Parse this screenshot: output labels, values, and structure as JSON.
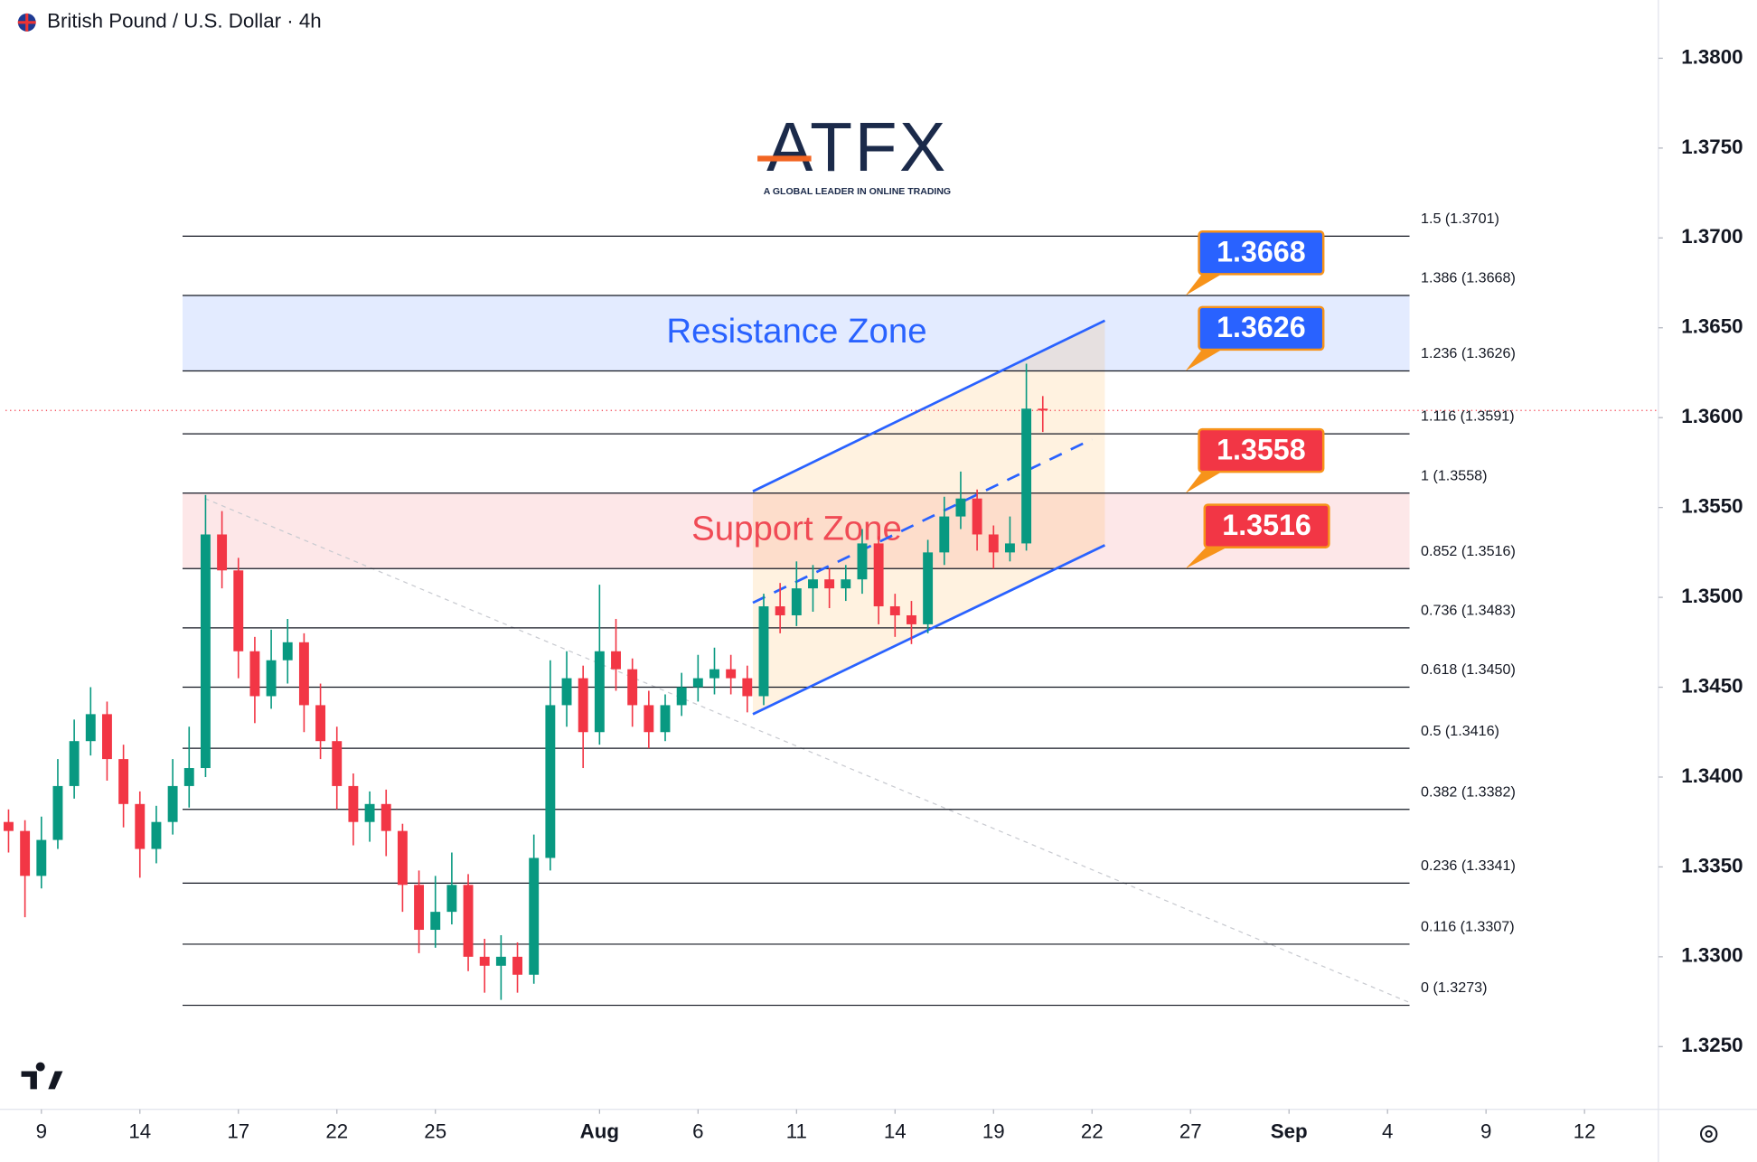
{
  "chart_data": {
    "type": "candlestick",
    "title": "British Pound / U.S. Dollar · 4h",
    "logo": {
      "text": "ATFX",
      "tagline": "A GLOBAL LEADER IN ONLINE TRADING"
    },
    "up_color": "#089981",
    "down_color": "#f23645",
    "x": [
      -1.0,
      -0.5,
      0.0,
      0.5,
      1.0,
      1.5,
      2.0,
      2.5,
      3.0,
      3.5,
      4.0,
      4.5,
      5.0,
      5.5,
      6.0,
      6.5,
      7.0,
      7.5,
      8.0,
      8.5,
      9.0,
      9.5,
      10.0,
      10.5,
      11.0,
      11.5,
      12.0,
      12.5,
      13.0,
      13.5,
      14.0,
      14.5,
      15.0,
      15.5,
      16.0,
      16.5,
      17.0,
      17.5,
      18.0,
      18.5,
      19.0,
      19.5,
      20.0,
      20.5,
      21.0,
      21.5,
      22.0,
      22.5,
      23.0,
      23.5,
      24.0,
      24.5,
      25.0,
      25.5,
      26.0,
      26.5,
      27.0,
      27.5,
      28.0,
      28.5,
      29.0,
      29.5,
      30.0,
      30.5
    ],
    "open": [
      1.3375,
      1.337,
      1.3345,
      1.3365,
      1.3395,
      1.342,
      1.3435,
      1.341,
      1.3385,
      1.336,
      1.3375,
      1.3395,
      1.3405,
      1.3535,
      1.3515,
      1.347,
      1.3445,
      1.3465,
      1.3475,
      1.344,
      1.342,
      1.3395,
      1.3375,
      1.3385,
      1.337,
      1.334,
      1.3315,
      1.3325,
      1.334,
      1.33,
      1.3295,
      1.33,
      1.329,
      1.3355,
      1.344,
      1.3455,
      1.3425,
      1.347,
      1.346,
      1.344,
      1.3425,
      1.344,
      1.345,
      1.3455,
      1.346,
      1.3455,
      1.3445,
      1.3495,
      1.349,
      1.3505,
      1.351,
      1.3505,
      1.351,
      1.353,
      1.3495,
      1.349,
      1.3485,
      1.3525,
      1.3545,
      1.3555,
      1.3535,
      1.3525,
      1.353,
      1.3605
    ],
    "high": [
      1.3382,
      1.3376,
      1.3378,
      1.341,
      1.3432,
      1.345,
      1.3442,
      1.3418,
      1.3392,
      1.3384,
      1.341,
      1.3428,
      1.3557,
      1.3548,
      1.3522,
      1.3478,
      1.3482,
      1.3488,
      1.348,
      1.3452,
      1.3428,
      1.3402,
      1.3392,
      1.3393,
      1.3374,
      1.3348,
      1.3345,
      1.3358,
      1.3346,
      1.331,
      1.3312,
      1.3308,
      1.3368,
      1.3465,
      1.347,
      1.3462,
      1.3507,
      1.3488,
      1.3466,
      1.3448,
      1.3446,
      1.3458,
      1.3468,
      1.3472,
      1.3468,
      1.3462,
      1.3502,
      1.3508,
      1.352,
      1.3518,
      1.3516,
      1.3518,
      1.3538,
      1.3534,
      1.3502,
      1.3498,
      1.3532,
      1.3556,
      1.357,
      1.356,
      1.354,
      1.3545,
      1.363,
      1.3612
    ],
    "low": [
      1.3358,
      1.3322,
      1.3338,
      1.336,
      1.3388,
      1.3412,
      1.3398,
      1.3372,
      1.3344,
      1.3352,
      1.3368,
      1.3383,
      1.34,
      1.3505,
      1.3455,
      1.343,
      1.3438,
      1.3452,
      1.3425,
      1.341,
      1.3382,
      1.3362,
      1.3364,
      1.3356,
      1.3325,
      1.3302,
      1.3305,
      1.3318,
      1.3292,
      1.328,
      1.3276,
      1.328,
      1.3285,
      1.3348,
      1.3428,
      1.3405,
      1.3418,
      1.3448,
      1.3428,
      1.3416,
      1.342,
      1.3434,
      1.3442,
      1.3446,
      1.3446,
      1.3436,
      1.344,
      1.348,
      1.3484,
      1.3492,
      1.3494,
      1.3498,
      1.3502,
      1.3485,
      1.3478,
      1.3474,
      1.348,
      1.3518,
      1.3538,
      1.3526,
      1.3516,
      1.352,
      1.3526,
      1.3592
    ],
    "close": [
      1.337,
      1.3345,
      1.3365,
      1.3395,
      1.342,
      1.3435,
      1.341,
      1.3385,
      1.336,
      1.3375,
      1.3395,
      1.3405,
      1.3535,
      1.3515,
      1.347,
      1.3445,
      1.3465,
      1.3475,
      1.344,
      1.342,
      1.3395,
      1.3375,
      1.3385,
      1.337,
      1.334,
      1.3315,
      1.3325,
      1.334,
      1.33,
      1.3295,
      1.33,
      1.329,
      1.3355,
      1.344,
      1.3455,
      1.3425,
      1.347,
      1.346,
      1.344,
      1.3425,
      1.344,
      1.345,
      1.3455,
      1.346,
      1.3455,
      1.3445,
      1.3495,
      1.349,
      1.3505,
      1.351,
      1.3505,
      1.351,
      1.353,
      1.3495,
      1.349,
      1.3485,
      1.3525,
      1.3545,
      1.3555,
      1.3535,
      1.3525,
      1.353,
      1.3605,
      1.3604
    ],
    "xlim": [
      -1.09,
      49.25
    ],
    "xticks": [
      {
        "value": 0,
        "label": "9"
      },
      {
        "value": 3,
        "label": "14"
      },
      {
        "value": 6,
        "label": "17"
      },
      {
        "value": 9,
        "label": "22"
      },
      {
        "value": 12,
        "label": "25"
      },
      {
        "value": 17,
        "label": "Aug"
      },
      {
        "value": 20,
        "label": "6"
      },
      {
        "value": 23,
        "label": "11"
      },
      {
        "value": 26,
        "label": "14"
      },
      {
        "value": 29,
        "label": "19"
      },
      {
        "value": 32,
        "label": "22"
      },
      {
        "value": 35,
        "label": "27"
      },
      {
        "value": 38,
        "label": "Sep"
      },
      {
        "value": 41,
        "label": "4"
      },
      {
        "value": 44,
        "label": "9"
      },
      {
        "value": 47,
        "label": "12"
      }
    ],
    "ylim": [
      1.32151,
      1.38324
    ],
    "yticks": [
      {
        "value": 1.38,
        "label": "1.3800"
      },
      {
        "value": 1.375,
        "label": "1.3750"
      },
      {
        "value": 1.37,
        "label": "1.3700"
      },
      {
        "value": 1.365,
        "label": "1.3650"
      },
      {
        "value": 1.36,
        "label": "1.3600"
      },
      {
        "value": 1.355,
        "label": "1.3550"
      },
      {
        "value": 1.35,
        "label": "1.3500"
      },
      {
        "value": 1.345,
        "label": "1.3450"
      },
      {
        "value": 1.34,
        "label": "1.3400"
      },
      {
        "value": 1.335,
        "label": "1.3350"
      },
      {
        "value": 1.33,
        "label": "1.3300"
      },
      {
        "value": 1.325,
        "label": "1.3250"
      }
    ],
    "grid": false,
    "fib": {
      "x_start": 4.3,
      "x_end": 41.67,
      "color": "#131722",
      "levels": [
        {
          "label": "1.5 (1.3701)",
          "price": 1.3701
        },
        {
          "label": "1.386 (1.3668)",
          "price": 1.3668
        },
        {
          "label": "1.236 (1.3626)",
          "price": 1.3626
        },
        {
          "label": "1.116 (1.3591)",
          "price": 1.3591
        },
        {
          "label": "1 (1.3558)",
          "price": 1.3558
        },
        {
          "label": "0.852 (1.3516)",
          "price": 1.3516
        },
        {
          "label": "0.736 (1.3483)",
          "price": 1.3483
        },
        {
          "label": "0.618 (1.3450)",
          "price": 1.345
        },
        {
          "label": "0.5 (1.3416)",
          "price": 1.3416
        },
        {
          "label": "0.382 (1.3382)",
          "price": 1.3382
        },
        {
          "label": "0.236 (1.3341)",
          "price": 1.3341
        },
        {
          "label": "0.116 (1.3307)",
          "price": 1.3307
        },
        {
          "label": "0 (1.3273)",
          "price": 1.3273
        }
      ]
    },
    "zones": [
      {
        "label": "Resistance Zone",
        "low": 1.3626,
        "high": 1.3668,
        "fill": "rgba(41,98,255,0.13)",
        "color": "#2962ff"
      },
      {
        "label": "Support Zone",
        "low": 1.3516,
        "high": 1.3558,
        "fill": "rgba(242,54,69,0.12)",
        "color": "#f04b55"
      }
    ],
    "callouts": [
      {
        "value": 1.3668,
        "color": "#2962ff"
      },
      {
        "value": 1.3626,
        "color": "#2962ff"
      },
      {
        "value": 1.3558,
        "color": "#f23645"
      },
      {
        "value": 1.3516,
        "color": "#f23645"
      }
    ],
    "channel": {
      "x": [
        21.67,
        32.39
      ],
      "upper": [
        1.3559,
        1.3654
      ],
      "lower": [
        1.3435,
        1.3529
      ],
      "middle_x": [
        21.67,
        32.0
      ],
      "middle": [
        1.3497,
        1.3588
      ],
      "color": "#2962ff",
      "fill": "rgba(255,152,0,0.12)"
    },
    "trendline": {
      "x": [
        4.98,
        41.74
      ],
      "y": [
        1.3555,
        1.3274
      ],
      "color": "#c8cad0"
    },
    "price_line_color": "#f23645"
  }
}
